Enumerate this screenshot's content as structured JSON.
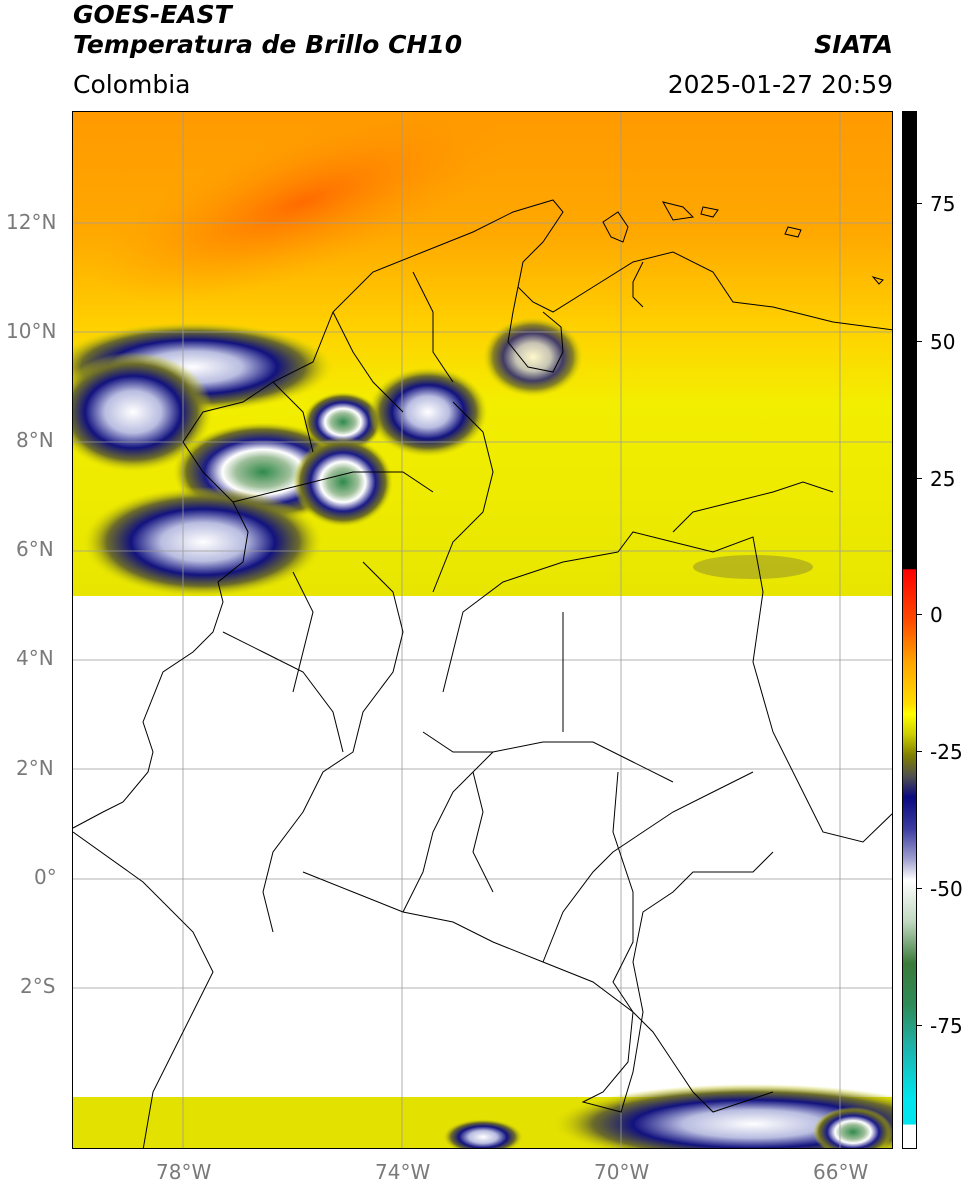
{
  "header": {
    "satellite": "GOES-EAST",
    "product": "Temperatura de Brillo CH10",
    "region": "Colombia",
    "agency": "SIATA",
    "datetime": "2025-01-27 20:59"
  },
  "map": {
    "lat_labels": [
      "12°N",
      "10°N",
      "8°N",
      "6°N",
      "4°N",
      "2°N",
      "0°",
      "2°S"
    ],
    "lon_labels": [
      "78°W",
      "74°W",
      "70°W",
      "66°W"
    ],
    "extent": {
      "lon_min": -80,
      "lon_max": -65,
      "lat_min": -5,
      "lat_max": 14
    }
  },
  "colorbar": {
    "ticks": [
      "75",
      "50",
      "25",
      "0",
      "-25",
      "-50",
      "-75"
    ],
    "colors": {
      "black": "#000000",
      "red": "#ff0000",
      "orange": "#ff8c00",
      "yellow": "#ffff00",
      "olive": "#808000",
      "darkblue": "#0a0a80",
      "white": "#ffffff",
      "green": "#2e7d32",
      "teal": "#20b2aa",
      "cyan": "#00e5ee"
    }
  }
}
